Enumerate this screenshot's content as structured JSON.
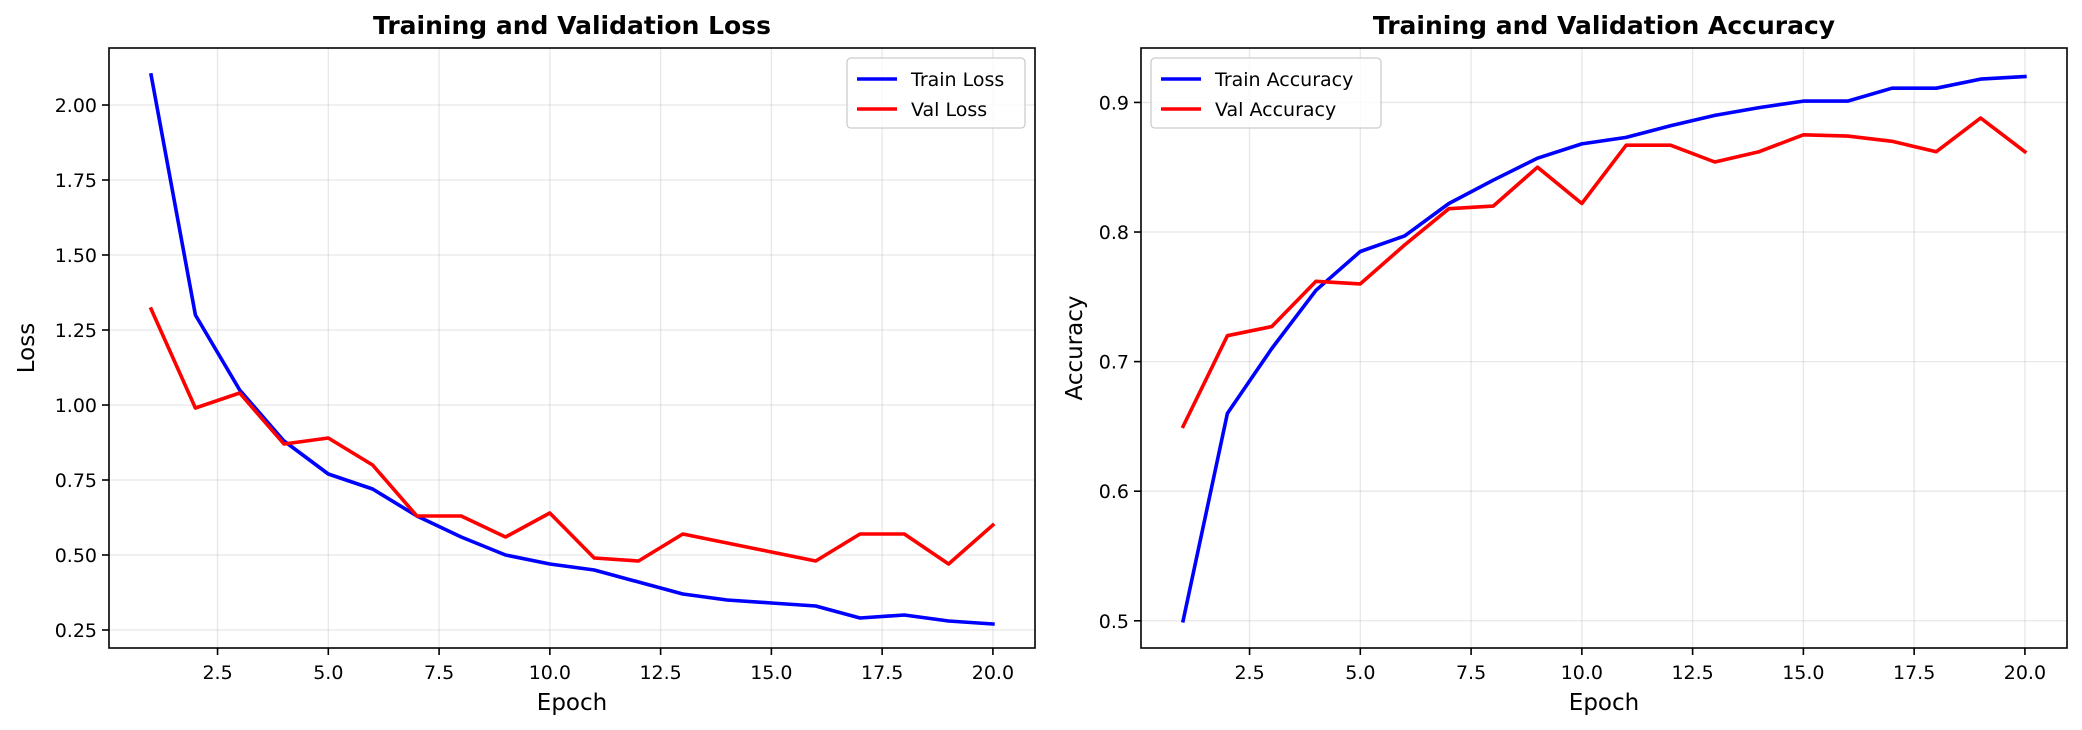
{
  "chart_data": [
    {
      "type": "line",
      "title": "Training and Validation Loss",
      "xlabel": "Epoch",
      "ylabel": "Loss",
      "x": [
        1,
        2,
        3,
        4,
        5,
        6,
        7,
        8,
        9,
        10,
        11,
        12,
        13,
        14,
        15,
        16,
        17,
        18,
        19,
        20
      ],
      "xlim": [
        0.05,
        20.95
      ],
      "ylim": [
        0.19,
        2.19
      ],
      "xticks": [
        2.5,
        5.0,
        7.5,
        10.0,
        12.5,
        15.0,
        17.5,
        20.0
      ],
      "xtick_labels": [
        "2.5",
        "5.0",
        "7.5",
        "10.0",
        "12.5",
        "15.0",
        "17.5",
        "20.0"
      ],
      "yticks": [
        0.25,
        0.5,
        0.75,
        1.0,
        1.25,
        1.5,
        1.75,
        2.0
      ],
      "ytick_labels": [
        "0.25",
        "0.50",
        "0.75",
        "1.00",
        "1.25",
        "1.50",
        "1.75",
        "2.00"
      ],
      "grid": true,
      "legend_position": "upper right",
      "series": [
        {
          "name": "Train Loss",
          "color": "#0000ff",
          "values": [
            2.1,
            1.3,
            1.05,
            0.88,
            0.77,
            0.72,
            0.63,
            0.56,
            0.5,
            0.47,
            0.45,
            0.41,
            0.37,
            0.35,
            0.34,
            0.33,
            0.29,
            0.3,
            0.28,
            0.27
          ]
        },
        {
          "name": "Val Loss",
          "color": "#ff0000",
          "values": [
            1.32,
            0.99,
            1.04,
            0.87,
            0.89,
            0.8,
            0.63,
            0.63,
            0.56,
            0.64,
            0.49,
            0.48,
            0.57,
            0.54,
            0.51,
            0.48,
            0.57,
            0.57,
            0.47,
            0.6
          ]
        }
      ]
    },
    {
      "type": "line",
      "title": "Training and Validation Accuracy",
      "xlabel": "Epoch",
      "ylabel": "Accuracy",
      "x": [
        1,
        2,
        3,
        4,
        5,
        6,
        7,
        8,
        9,
        10,
        11,
        12,
        13,
        14,
        15,
        16,
        17,
        18,
        19,
        20
      ],
      "xlim": [
        0.05,
        20.95
      ],
      "ylim": [
        0.479,
        0.942
      ],
      "xticks": [
        2.5,
        5.0,
        7.5,
        10.0,
        12.5,
        15.0,
        17.5,
        20.0
      ],
      "xtick_labels": [
        "2.5",
        "5.0",
        "7.5",
        "10.0",
        "12.5",
        "15.0",
        "17.5",
        "20.0"
      ],
      "yticks": [
        0.5,
        0.6,
        0.7,
        0.8,
        0.9
      ],
      "ytick_labels": [
        "0.5",
        "0.6",
        "0.7",
        "0.8",
        "0.9"
      ],
      "grid": true,
      "legend_position": "upper left",
      "series": [
        {
          "name": "Train Accuracy",
          "color": "#0000ff",
          "values": [
            0.5,
            0.66,
            0.71,
            0.755,
            0.785,
            0.797,
            0.822,
            0.84,
            0.857,
            0.868,
            0.873,
            0.882,
            0.89,
            0.896,
            0.901,
            0.901,
            0.911,
            0.911,
            0.918,
            0.92
          ]
        },
        {
          "name": "Val Accuracy",
          "color": "#ff0000",
          "values": [
            0.65,
            0.72,
            0.727,
            0.762,
            0.76,
            0.79,
            0.818,
            0.82,
            0.85,
            0.822,
            0.867,
            0.867,
            0.854,
            0.862,
            0.875,
            0.874,
            0.87,
            0.862,
            0.888,
            0.862
          ]
        }
      ]
    }
  ]
}
